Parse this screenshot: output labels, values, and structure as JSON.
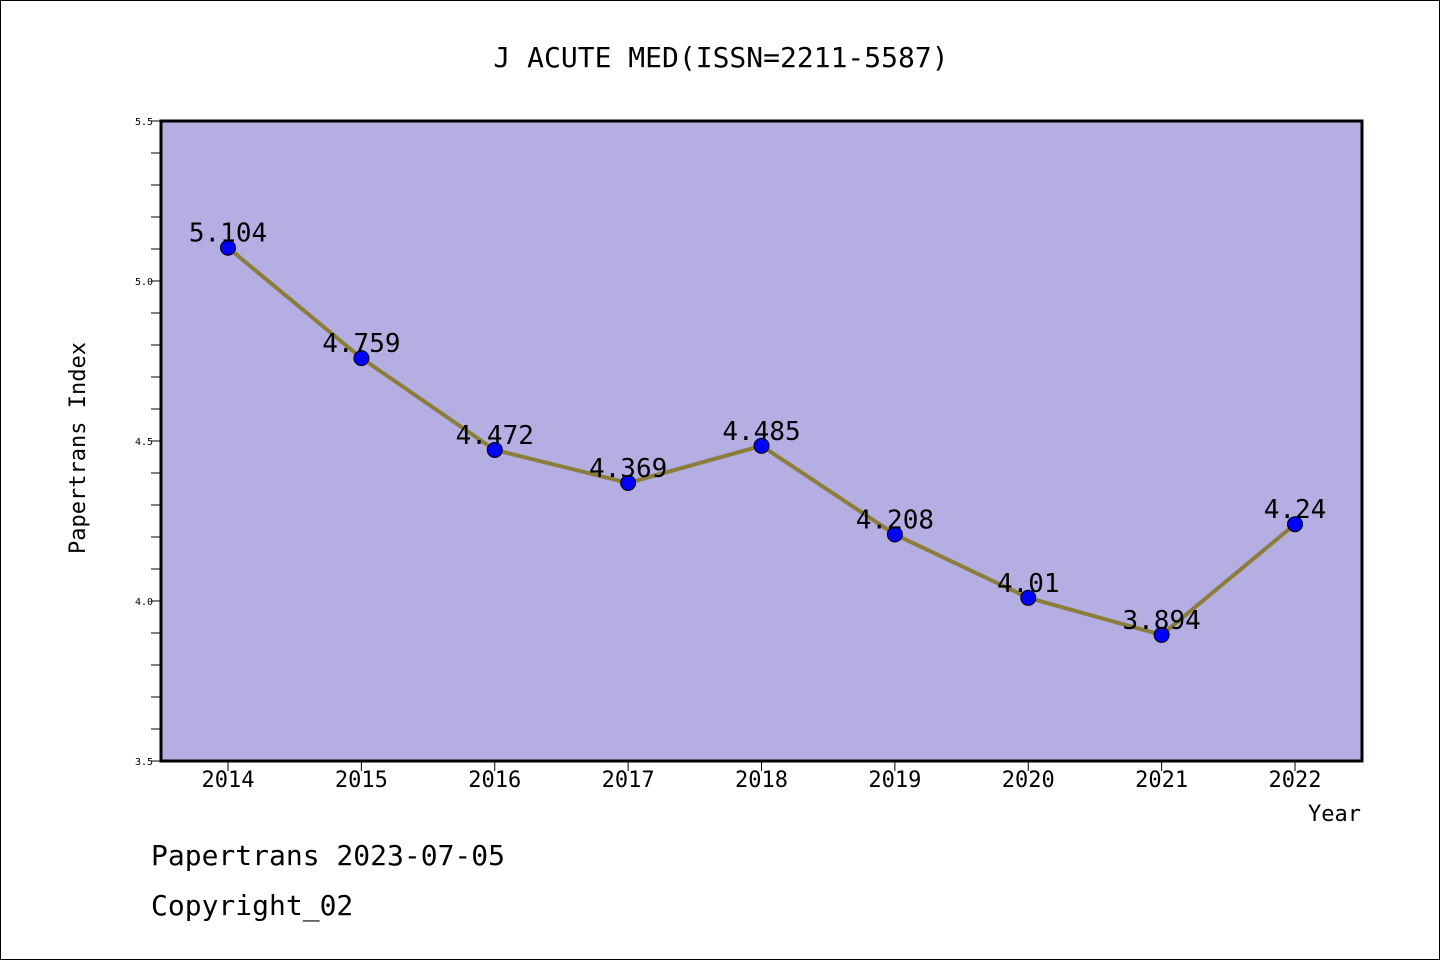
{
  "chart_data": {
    "type": "line",
    "title": "J ACUTE MED(ISSN=2211-5587)",
    "xlabel": "Year",
    "ylabel": "Papertrans Index",
    "categories": [
      "2014",
      "2015",
      "2016",
      "2017",
      "2018",
      "2019",
      "2020",
      "2021",
      "2022"
    ],
    "series": [
      {
        "values": [
          5.104,
          4.759,
          4.472,
          4.369,
          4.485,
          4.208,
          4.01,
          3.894,
          4.24
        ],
        "data_labels": [
          "5.104",
          "4.759",
          "4.472",
          "4.369",
          "4.485",
          "4.208",
          "4.01",
          "3.894",
          "4.24"
        ]
      }
    ],
    "ylim": [
      3.5,
      5.5
    ],
    "yticks": [
      "3.5",
      "4.0",
      "4.5",
      "5.0",
      "5.5"
    ],
    "grid": false,
    "colors": {
      "plot_background": "#b5aee2",
      "line": "#8b7d3a",
      "marker": "#0000ff"
    }
  },
  "footer": {
    "line1": "Papertrans 2023-07-05",
    "line2": "Copyright_02"
  }
}
